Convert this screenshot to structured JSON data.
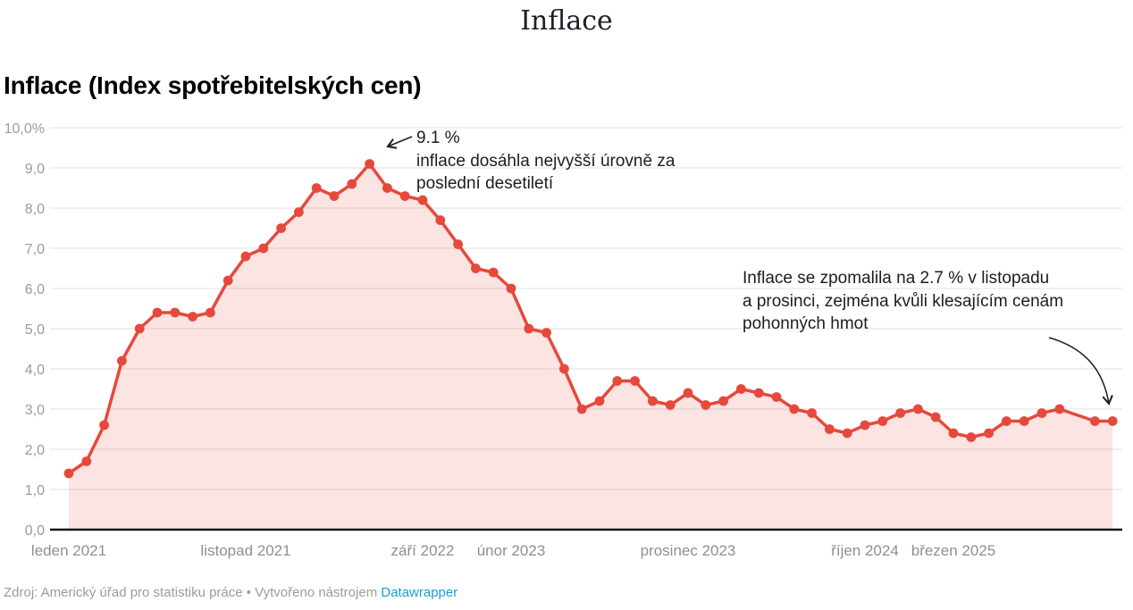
{
  "title": "Inflace",
  "heading": "Inflace (Index spotřebitelských cen)",
  "annotations": {
    "peak": "9.1 %\ninflace dosáhla nejvyšší úrovně za\nposlední desetiletí",
    "recent": "Inflace se zpomalila na 2.7 % v listopadu\na prosinci, zejména kvůli klesajícím cenám\npohonných hmot"
  },
  "footer": {
    "source_text": "Zdroj: Americký úřad pro statistiku práce • Vytvořeno nástrojem ",
    "link_label": "Datawrapper"
  },
  "chart_data": {
    "type": "line",
    "title": "Inflace",
    "subtitle": "Inflace (Index spotřebitelských cen)",
    "xlabel": "",
    "ylabel": "",
    "ylim": [
      0,
      10
    ],
    "grid": "horizontal",
    "legend": "none",
    "line_color": "#e5493c",
    "fill_color": "rgba(229,73,60,0.15)",
    "axis_color": "#151515",
    "grid_color": "#e0e0e0",
    "tick_label_color": "#9b9b9b",
    "y_tick_labels": [
      "0,0",
      "1,0",
      "2,0",
      "3,0",
      "4,0",
      "5,0",
      "6,0",
      "7,0",
      "8,0",
      "9,0",
      "10,0%"
    ],
    "x_ticks": [
      {
        "month": "2021-01",
        "label": "leden 2021"
      },
      {
        "month": "2021-11",
        "label": "listopad 2021"
      },
      {
        "month": "2022-09",
        "label": "září 2022"
      },
      {
        "month": "2023-02",
        "label": "únor 2023"
      },
      {
        "month": "2023-12",
        "label": "prosinec 2023"
      },
      {
        "month": "2024-10",
        "label": "říjen 2024"
      },
      {
        "month": "2025-03",
        "label": "březen 2025"
      }
    ],
    "series": [
      {
        "name": "Inflace (Index spotřebitelských cen)",
        "points": [
          [
            "2021-01",
            1.4
          ],
          [
            "2021-02",
            1.7
          ],
          [
            "2021-03",
            2.6
          ],
          [
            "2021-04",
            4.2
          ],
          [
            "2021-05",
            5.0
          ],
          [
            "2021-06",
            5.4
          ],
          [
            "2021-07",
            5.4
          ],
          [
            "2021-08",
            5.3
          ],
          [
            "2021-09",
            5.4
          ],
          [
            "2021-10",
            6.2
          ],
          [
            "2021-11",
            6.8
          ],
          [
            "2021-12",
            7.0
          ],
          [
            "2022-01",
            7.5
          ],
          [
            "2022-02",
            7.9
          ],
          [
            "2022-03",
            8.5
          ],
          [
            "2022-04",
            8.3
          ],
          [
            "2022-05",
            8.6
          ],
          [
            "2022-06",
            9.1
          ],
          [
            "2022-07",
            8.5
          ],
          [
            "2022-08",
            8.3
          ],
          [
            "2022-09",
            8.2
          ],
          [
            "2022-10",
            7.7
          ],
          [
            "2022-11",
            7.1
          ],
          [
            "2022-12",
            6.5
          ],
          [
            "2023-01",
            6.4
          ],
          [
            "2023-02",
            6.0
          ],
          [
            "2023-03",
            5.0
          ],
          [
            "2023-04",
            4.9
          ],
          [
            "2023-05",
            4.0
          ],
          [
            "2023-06",
            3.0
          ],
          [
            "2023-07",
            3.2
          ],
          [
            "2023-08",
            3.7
          ],
          [
            "2023-09",
            3.7
          ],
          [
            "2023-10",
            3.2
          ],
          [
            "2023-11",
            3.1
          ],
          [
            "2023-12",
            3.4
          ],
          [
            "2024-01",
            3.1
          ],
          [
            "2024-02",
            3.2
          ],
          [
            "2024-03",
            3.5
          ],
          [
            "2024-04",
            3.4
          ],
          [
            "2024-05",
            3.3
          ],
          [
            "2024-06",
            3.0
          ],
          [
            "2024-07",
            2.9
          ],
          [
            "2024-08",
            2.5
          ],
          [
            "2024-09",
            2.4
          ],
          [
            "2024-10",
            2.6
          ],
          [
            "2024-11",
            2.7
          ],
          [
            "2024-12",
            2.9
          ],
          [
            "2025-01",
            3.0
          ],
          [
            "2025-02",
            2.8
          ],
          [
            "2025-03",
            2.4
          ],
          [
            "2025-04",
            2.3
          ],
          [
            "2025-05",
            2.4
          ],
          [
            "2025-06",
            2.7
          ],
          [
            "2025-07",
            2.7
          ],
          [
            "2025-08",
            2.9
          ],
          [
            "2025-09",
            3.0
          ],
          [
            "2025-11",
            2.7
          ],
          [
            "2025-12",
            2.7
          ]
        ]
      }
    ],
    "annotations": [
      {
        "text": "9.1 %\ninflace dosáhla nejvyšší úrovně za\nposlední desetiletí",
        "points_to": "2022-06"
      },
      {
        "text": "Inflace se zpomalila na 2.7 % v listopadu\na prosinci, zejména kvůli klesajícím cenám\npohonných hmot",
        "points_to": "2025-12"
      }
    ]
  }
}
